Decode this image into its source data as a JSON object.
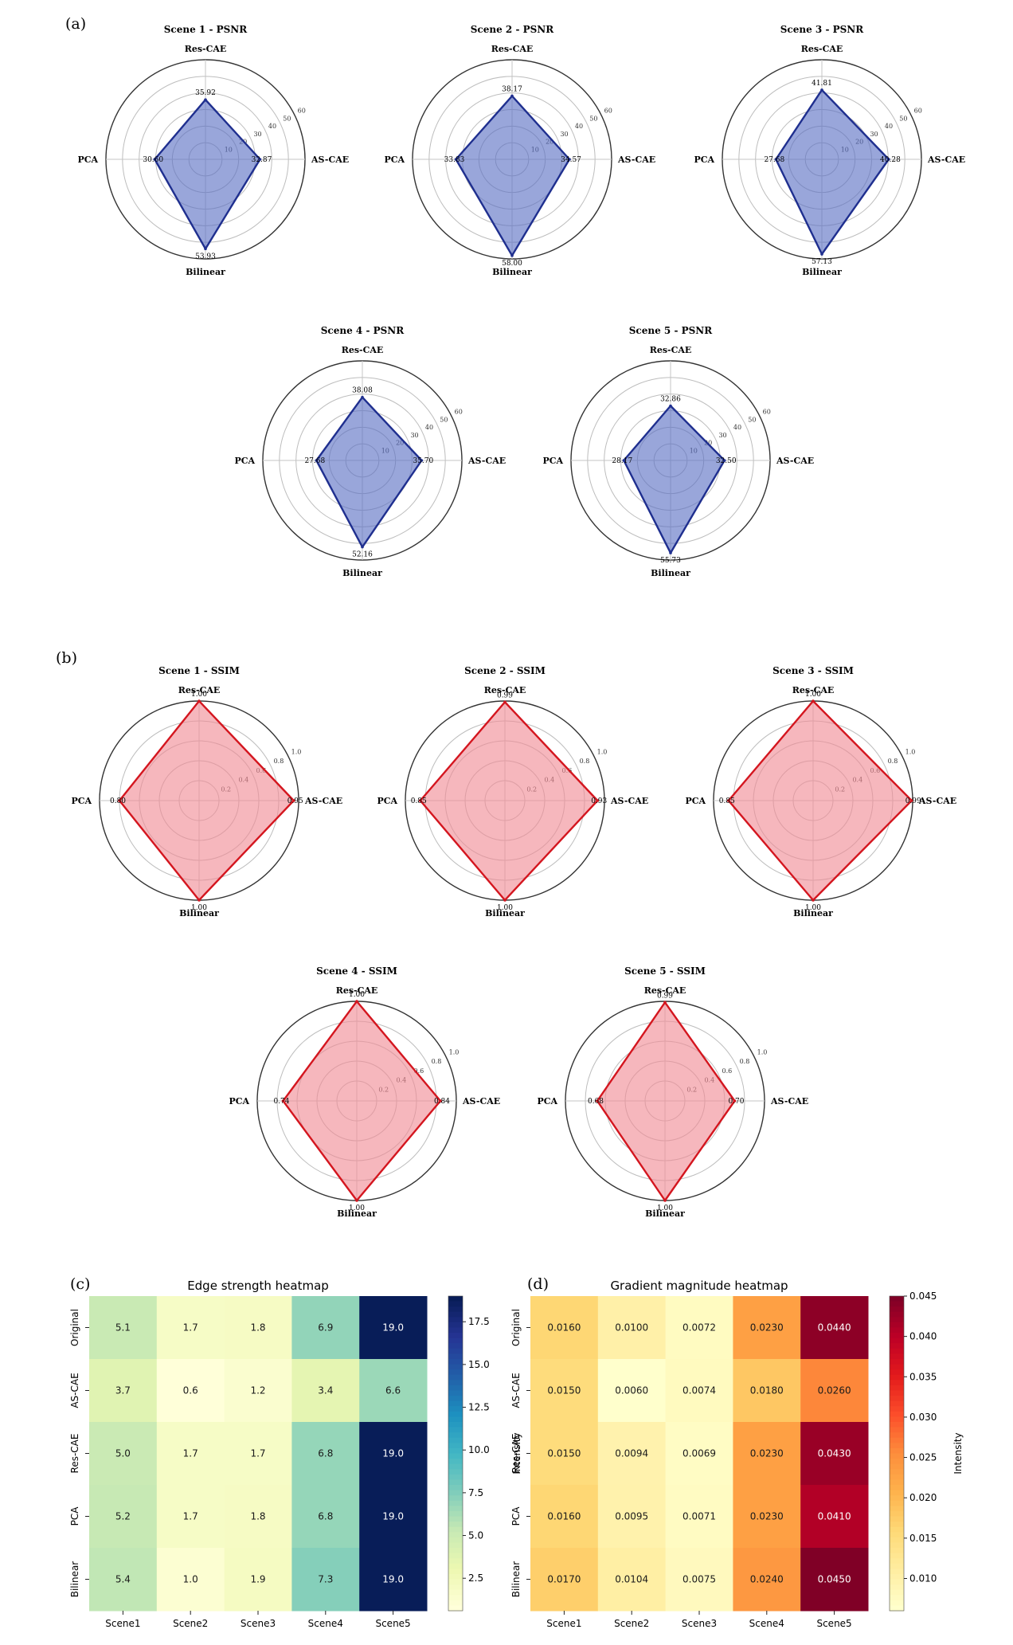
{
  "panels": {
    "a": "(a)",
    "b": "(b)",
    "c": "(c)",
    "d": "(d)"
  },
  "chart_data": [
    {
      "type": "radar",
      "title": "Scene 1 - PSNR",
      "color": "#5b6fc4",
      "edge": "#1f2f8f",
      "axes": [
        "Res-CAE",
        "AS-CAE",
        "Bilinear",
        "PCA"
      ],
      "values": [
        35.92,
        32.87,
        53.93,
        30.6
      ],
      "value_labels": [
        "35.92",
        "32.87",
        "53.93",
        "30.60"
      ],
      "rmax": 60,
      "ticks": [
        10,
        20,
        30,
        40,
        50,
        60
      ],
      "tick_labels": [
        "10",
        "20",
        "30",
        "40",
        "50",
        "60"
      ]
    },
    {
      "type": "radar",
      "title": "Scene 2 - PSNR",
      "color": "#5b6fc4",
      "edge": "#1f2f8f",
      "axes": [
        "Res-CAE",
        "AS-CAE",
        "Bilinear",
        "PCA"
      ],
      "values": [
        38.17,
        34.57,
        58.0,
        33.83
      ],
      "value_labels": [
        "38.17",
        "34.57",
        "58.00",
        "33.83"
      ],
      "rmax": 60,
      "ticks": [
        10,
        20,
        30,
        40,
        50,
        60
      ],
      "tick_labels": [
        "10",
        "20",
        "30",
        "40",
        "50",
        "60"
      ]
    },
    {
      "type": "radar",
      "title": "Scene 3 - PSNR",
      "color": "#5b6fc4",
      "edge": "#1f2f8f",
      "axes": [
        "Res-CAE",
        "AS-CAE",
        "Bilinear",
        "PCA"
      ],
      "values": [
        41.81,
        40.28,
        57.13,
        27.68
      ],
      "value_labels": [
        "41.81",
        "40.28",
        "57.13",
        "27.68"
      ],
      "rmax": 60,
      "ticks": [
        10,
        20,
        30,
        40,
        50,
        60
      ],
      "tick_labels": [
        "10",
        "20",
        "30",
        "40",
        "50",
        "60"
      ]
    },
    {
      "type": "radar",
      "title": "Scene 4 - PSNR",
      "color": "#5b6fc4",
      "edge": "#1f2f8f",
      "axes": [
        "Res-CAE",
        "AS-CAE",
        "Bilinear",
        "PCA"
      ],
      "values": [
        38.08,
        35.7,
        52.16,
        27.68
      ],
      "value_labels": [
        "38.08",
        "35.70",
        "52.16",
        "27.68"
      ],
      "rmax": 60,
      "ticks": [
        10,
        20,
        30,
        40,
        50,
        60
      ],
      "tick_labels": [
        "10",
        "20",
        "30",
        "40",
        "50",
        "60"
      ]
    },
    {
      "type": "radar",
      "title": "Scene 5 - PSNR",
      "color": "#5b6fc4",
      "edge": "#1f2f8f",
      "axes": [
        "Res-CAE",
        "AS-CAE",
        "Bilinear",
        "PCA"
      ],
      "values": [
        32.86,
        32.5,
        55.73,
        28.17
      ],
      "value_labels": [
        "32.86",
        "32.50",
        "55.73",
        "28.17"
      ],
      "rmax": 60,
      "ticks": [
        10,
        20,
        30,
        40,
        50,
        60
      ],
      "tick_labels": [
        "10",
        "20",
        "30",
        "40",
        "50",
        "60"
      ]
    },
    {
      "type": "radar",
      "title": "Scene 1 - SSIM",
      "color": "#f08a94",
      "edge": "#d4161f",
      "axes": [
        "Res-CAE",
        "AS-CAE",
        "Bilinear",
        "PCA"
      ],
      "values": [
        1.0,
        0.95,
        1.0,
        0.8
      ],
      "value_labels": [
        "1.00",
        "0.95",
        "1.00",
        "0.80"
      ],
      "rmax": 1.0,
      "ticks": [
        0.2,
        0.4,
        0.6,
        0.8,
        1.0
      ],
      "tick_labels": [
        "0.2",
        "0.4",
        "0.6",
        "0.8",
        "1.0"
      ]
    },
    {
      "type": "radar",
      "title": "Scene 2 - SSIM",
      "color": "#f08a94",
      "edge": "#d4161f",
      "axes": [
        "Res-CAE",
        "AS-CAE",
        "Bilinear",
        "PCA"
      ],
      "values": [
        0.99,
        0.93,
        1.0,
        0.85
      ],
      "value_labels": [
        "0.99",
        "0.93",
        "1.00",
        "0.85"
      ],
      "rmax": 1.0,
      "ticks": [
        0.2,
        0.4,
        0.6,
        0.8,
        1.0
      ],
      "tick_labels": [
        "0.2",
        "0.4",
        "0.6",
        "0.8",
        "1.0"
      ]
    },
    {
      "type": "radar",
      "title": "Scene 3 - SSIM",
      "color": "#f08a94",
      "edge": "#d4161f",
      "axes": [
        "Res-CAE",
        "AS-CAE",
        "Bilinear",
        "PCA"
      ],
      "values": [
        1.0,
        0.99,
        1.0,
        0.85
      ],
      "value_labels": [
        "1.00",
        "0.99",
        "1.00",
        "0.85"
      ],
      "rmax": 1.0,
      "ticks": [
        0.2,
        0.4,
        0.6,
        0.8,
        1.0
      ],
      "tick_labels": [
        "0.2",
        "0.4",
        "0.6",
        "0.8",
        "1.0"
      ]
    },
    {
      "type": "radar",
      "title": "Scene 4 - SSIM",
      "color": "#f08a94",
      "edge": "#d4161f",
      "axes": [
        "Res-CAE",
        "AS-CAE",
        "Bilinear",
        "PCA"
      ],
      "values": [
        1.0,
        0.84,
        1.0,
        0.74
      ],
      "value_labels": [
        "1.00",
        "0.84",
        "1.00",
        "0.74"
      ],
      "rmax": 1.0,
      "ticks": [
        0.2,
        0.4,
        0.6,
        0.8,
        1.0
      ],
      "tick_labels": [
        "0.2",
        "0.4",
        "0.6",
        "0.8",
        "1.0"
      ]
    },
    {
      "type": "radar",
      "title": "Scene 5 - SSIM",
      "color": "#f08a94",
      "edge": "#d4161f",
      "axes": [
        "Res-CAE",
        "AS-CAE",
        "Bilinear",
        "PCA"
      ],
      "values": [
        0.99,
        0.7,
        1.0,
        0.68
      ],
      "value_labels": [
        "0.99",
        "0.70",
        "1.00",
        "0.68"
      ],
      "rmax": 1.0,
      "ticks": [
        0.2,
        0.4,
        0.6,
        0.8,
        1.0
      ],
      "tick_labels": [
        "0.2",
        "0.4",
        "0.6",
        "0.8",
        "1.0"
      ]
    },
    {
      "type": "heatmap",
      "title": "Edge strength heatmap",
      "rows": [
        "Original",
        "AS-CAE",
        "Res-CAE",
        "PCA",
        "Bilinear"
      ],
      "cols": [
        "Scene1",
        "Scene2",
        "Scene3",
        "Scene4",
        "Scene5"
      ],
      "values": [
        [
          5.1,
          1.7,
          1.8,
          6.9,
          19.0
        ],
        [
          3.7,
          0.6,
          1.2,
          3.4,
          6.6
        ],
        [
          5.0,
          1.7,
          1.7,
          6.8,
          19.0
        ],
        [
          5.2,
          1.7,
          1.8,
          6.8,
          19.0
        ],
        [
          5.4,
          1.0,
          1.9,
          7.3,
          19.0
        ]
      ],
      "cell_labels": [
        [
          "5.1",
          "1.7",
          "1.8",
          "6.9",
          "19.0"
        ],
        [
          "3.7",
          "0.6",
          "1.2",
          "3.4",
          "6.6"
        ],
        [
          "5.0",
          "1.7",
          "1.7",
          "6.8",
          "19.0"
        ],
        [
          "5.2",
          "1.7",
          "1.8",
          "6.8",
          "19.0"
        ],
        [
          "5.4",
          "1.0",
          "1.9",
          "7.3",
          "19.0"
        ]
      ],
      "colormap": "YlGnBu",
      "vmin": 0.6,
      "vmax": 19.0,
      "colorbar_ticks": [
        2.5,
        5.0,
        7.5,
        10.0,
        12.5,
        15.0,
        17.5
      ],
      "colorbar_tick_labels": [
        "2.5",
        "5.0",
        "7.5",
        "10.0",
        "12.5",
        "15.0",
        "17.5"
      ],
      "colorbar_label": "Intensity"
    },
    {
      "type": "heatmap",
      "title": "Gradient magnitude heatmap",
      "rows": [
        "Original",
        "AS-CAE",
        "Res-CAE",
        "PCA",
        "Bilinear"
      ],
      "cols": [
        "Scene1",
        "Scene2",
        "Scene3",
        "Scene4",
        "Scene5"
      ],
      "values": [
        [
          0.016,
          0.01,
          0.0072,
          0.023,
          0.044
        ],
        [
          0.015,
          0.006,
          0.0074,
          0.018,
          0.026
        ],
        [
          0.015,
          0.0094,
          0.0069,
          0.023,
          0.043
        ],
        [
          0.016,
          0.0095,
          0.0071,
          0.023,
          0.041
        ],
        [
          0.017,
          0.0104,
          0.0075,
          0.024,
          0.045
        ]
      ],
      "cell_labels": [
        [
          "0.0160",
          "0.0100",
          "0.0072",
          "0.0230",
          "0.0440"
        ],
        [
          "0.0150",
          "0.0060",
          "0.0074",
          "0.0180",
          "0.0260"
        ],
        [
          "0.0150",
          "0.0094",
          "0.0069",
          "0.0230",
          "0.0430"
        ],
        [
          "0.0160",
          "0.0095",
          "0.0071",
          "0.0230",
          "0.0410"
        ],
        [
          "0.0170",
          "0.0104",
          "0.0075",
          "0.0240",
          "0.0450"
        ]
      ],
      "colormap": "YlOrRd",
      "vmin": 0.006,
      "vmax": 0.045,
      "colorbar_ticks": [
        0.01,
        0.015,
        0.02,
        0.025,
        0.03,
        0.035,
        0.04,
        0.045
      ],
      "colorbar_tick_labels": [
        "0.010",
        "0.015",
        "0.020",
        "0.025",
        "0.030",
        "0.035",
        "0.040",
        "0.045"
      ],
      "colorbar_label": "Intensity"
    }
  ]
}
